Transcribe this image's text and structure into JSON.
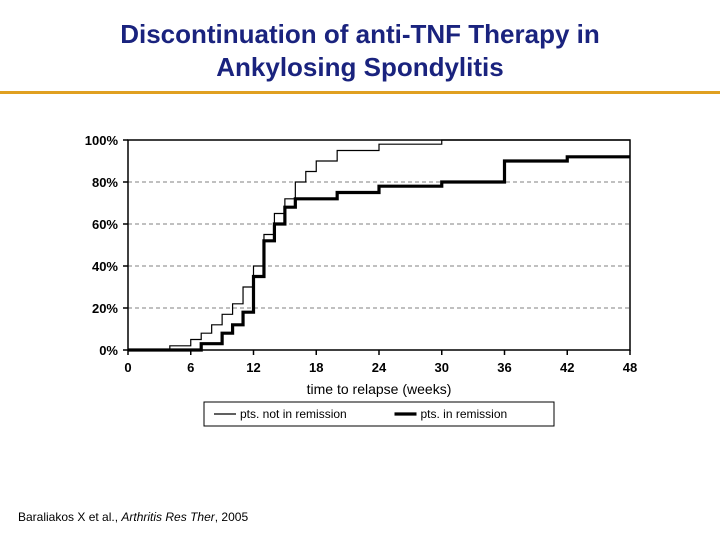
{
  "title_line1": "Discontinuation of anti-TNF Therapy in",
  "title_line2": "Ankylosing Spondylitis",
  "rule_color": "#e0a020",
  "citation": {
    "prefix": "Baraliakos X et al., ",
    "italic": "Arthritis Res Ther",
    "suffix": ", 2005"
  },
  "chart": {
    "type": "step-line",
    "background_color": "#ffffff",
    "plot_border_color": "#000000",
    "plot_border_width": 1.5,
    "grid_color": "#808080",
    "grid_dash": "4,3",
    "tick_font_size": 13,
    "tick_font_weight": "bold",
    "axis_label_font_size": 14,
    "legend_font_size": 12,
    "x": {
      "label": "time to relapse (weeks)",
      "min": 0,
      "max": 48,
      "ticks": [
        0,
        6,
        12,
        18,
        24,
        30,
        36,
        42,
        48
      ]
    },
    "y": {
      "min": 0,
      "max": 100,
      "ticks": [
        0,
        20,
        40,
        60,
        80,
        100
      ],
      "tick_labels": [
        "0%",
        "20%",
        "40%",
        "60%",
        "80%",
        "100%"
      ]
    },
    "series": [
      {
        "name": "pts. not in remission",
        "color": "#000000",
        "width": 1.2,
        "points": [
          [
            0,
            0
          ],
          [
            4,
            0
          ],
          [
            4,
            2
          ],
          [
            6,
            2
          ],
          [
            6,
            5
          ],
          [
            7,
            5
          ],
          [
            7,
            8
          ],
          [
            8,
            8
          ],
          [
            8,
            12
          ],
          [
            9,
            12
          ],
          [
            9,
            17
          ],
          [
            10,
            17
          ],
          [
            10,
            22
          ],
          [
            11,
            22
          ],
          [
            11,
            30
          ],
          [
            12,
            30
          ],
          [
            12,
            40
          ],
          [
            13,
            40
          ],
          [
            13,
            55
          ],
          [
            14,
            55
          ],
          [
            14,
            65
          ],
          [
            15,
            65
          ],
          [
            15,
            72
          ],
          [
            16,
            72
          ],
          [
            16,
            80
          ],
          [
            17,
            80
          ],
          [
            17,
            85
          ],
          [
            18,
            85
          ],
          [
            18,
            90
          ],
          [
            20,
            90
          ],
          [
            20,
            95
          ],
          [
            24,
            95
          ],
          [
            24,
            98
          ],
          [
            30,
            98
          ],
          [
            30,
            100
          ],
          [
            48,
            100
          ]
        ]
      },
      {
        "name": "pts. in remission",
        "color": "#000000",
        "width": 3.2,
        "points": [
          [
            0,
            0
          ],
          [
            7,
            0
          ],
          [
            7,
            3
          ],
          [
            9,
            3
          ],
          [
            9,
            8
          ],
          [
            10,
            8
          ],
          [
            10,
            12
          ],
          [
            11,
            12
          ],
          [
            11,
            18
          ],
          [
            12,
            18
          ],
          [
            12,
            35
          ],
          [
            13,
            35
          ],
          [
            13,
            52
          ],
          [
            14,
            52
          ],
          [
            14,
            60
          ],
          [
            15,
            60
          ],
          [
            15,
            68
          ],
          [
            16,
            68
          ],
          [
            16,
            72
          ],
          [
            20,
            72
          ],
          [
            20,
            75
          ],
          [
            24,
            75
          ],
          [
            24,
            78
          ],
          [
            30,
            78
          ],
          [
            30,
            80
          ],
          [
            36,
            80
          ],
          [
            36,
            90
          ],
          [
            42,
            90
          ],
          [
            42,
            92
          ],
          [
            48,
            92
          ]
        ]
      }
    ],
    "legend": {
      "border_color": "#000000",
      "background": "#ffffff",
      "items": [
        {
          "label": "pts. not in remission",
          "line_width": 1.2
        },
        {
          "label": "pts. in remission",
          "line_width": 3.2
        }
      ]
    }
  }
}
